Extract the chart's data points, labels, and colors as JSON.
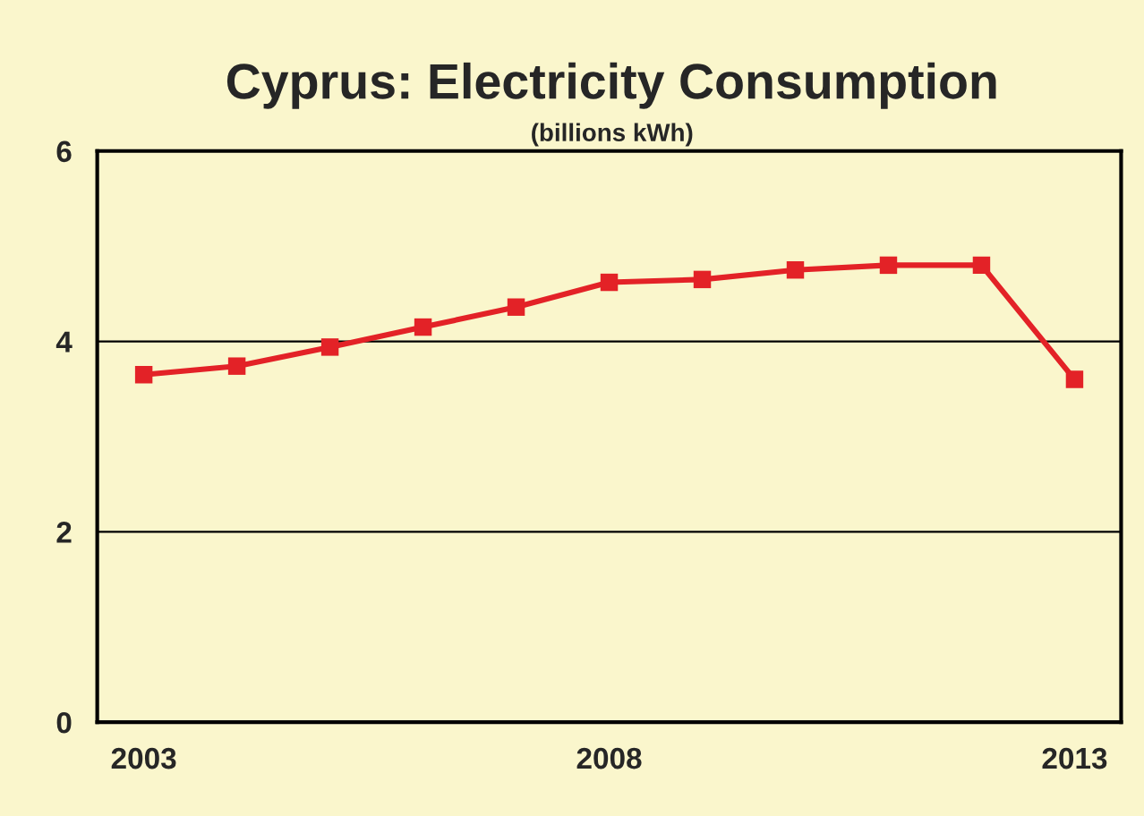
{
  "chart_data": {
    "type": "line",
    "title": "Cyprus: Electricity Consumption",
    "subtitle": "(billions kWh)",
    "x": [
      2003,
      2004,
      2005,
      2006,
      2007,
      2008,
      2009,
      2010,
      2011,
      2012,
      2013
    ],
    "series": [
      {
        "color": "#e32227",
        "values": [
          3.65,
          3.74,
          3.94,
          4.15,
          4.36,
          4.62,
          4.65,
          4.75,
          4.8,
          4.8,
          3.6
        ]
      }
    ],
    "xlim": [
      2002.5,
      2013.5
    ],
    "xticks": [
      2003,
      2008,
      2013
    ],
    "ylim": [
      0,
      6
    ],
    "yticks": [
      0,
      2,
      4,
      6
    ],
    "grid": "y",
    "marker": "square",
    "line_style": "solid"
  }
}
